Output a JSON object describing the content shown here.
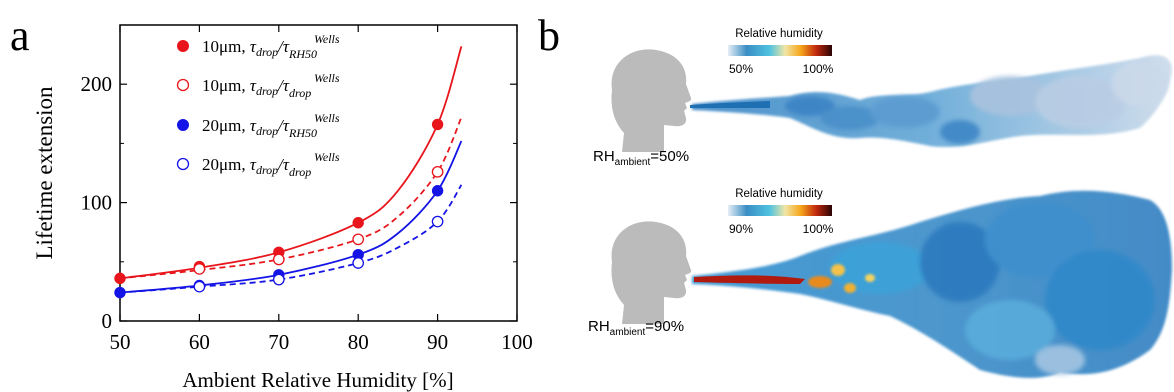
{
  "panel_a": {
    "label": "a",
    "chart_data": {
      "type": "scatter",
      "xlabel": "Ambient Relative Humidity [%]",
      "ylabel": "Lifetime extension",
      "xlim": [
        50,
        100
      ],
      "ylim": [
        0,
        250
      ],
      "xticks": [
        50,
        60,
        70,
        80,
        90,
        100
      ],
      "yticks": [
        0,
        100,
        200
      ],
      "grid": false,
      "legend_position": "top-left",
      "series": [
        {
          "name": "10μm, τdrop/τWellsRH50",
          "color": "#e8161c",
          "marker": "filled",
          "line": "solid",
          "x": [
            50,
            60,
            70,
            80,
            90
          ],
          "y": [
            36,
            46,
            58,
            83,
            166
          ]
        },
        {
          "name": "10μm, τdrop/τWellsdrop",
          "color": "#e8161c",
          "marker": "open",
          "line": "dashed",
          "x": [
            60,
            70,
            80,
            90
          ],
          "y": [
            44,
            52,
            69,
            126
          ]
        },
        {
          "name": "20μm, τdrop/τWellsRH50",
          "color": "#1414e6",
          "marker": "filled",
          "line": "solid",
          "x": [
            50,
            60,
            70,
            80,
            90
          ],
          "y": [
            24,
            30,
            39,
            56,
            110
          ]
        },
        {
          "name": "20μm, τdrop/τWellsdrop",
          "color": "#1414e6",
          "marker": "open",
          "line": "dashed",
          "x": [
            60,
            70,
            80,
            90
          ],
          "y": [
            29,
            35,
            49,
            84
          ]
        }
      ],
      "curves": [
        {
          "color": "#e8161c",
          "dash": false,
          "x": [
            50,
            60,
            70,
            80,
            85,
            90,
            93
          ],
          "y": [
            36,
            45,
            58,
            83,
            110,
            166,
            232
          ]
        },
        {
          "color": "#e8161c",
          "dash": true,
          "x": [
            50,
            60,
            70,
            80,
            85,
            90,
            93
          ],
          "y": [
            36,
            43,
            52,
            69,
            88,
            126,
            172
          ]
        },
        {
          "color": "#1414e6",
          "dash": false,
          "x": [
            50,
            60,
            70,
            80,
            85,
            90,
            93
          ],
          "y": [
            24,
            30,
            39,
            56,
            74,
            110,
            152
          ]
        },
        {
          "color": "#1414e6",
          "dash": true,
          "x": [
            50,
            60,
            70,
            80,
            85,
            90,
            93
          ],
          "y": [
            24,
            29,
            35,
            49,
            62,
            84,
            115
          ]
        }
      ]
    },
    "legend": [
      {
        "size": "10μm, ",
        "sup": "Wells",
        "sub": "RH50"
      },
      {
        "size": "10μm, ",
        "sup": "Wells",
        "sub": "drop"
      },
      {
        "size": "20μm, ",
        "sup": "Wells",
        "sub": "RH50"
      },
      {
        "size": "20μm, ",
        "sup": "Wells",
        "sub": "drop"
      }
    ]
  },
  "panel_b": {
    "label": "b",
    "top": {
      "colorbar_title": "Relative humidity",
      "colorbar_min": "50%",
      "colorbar_max": "100%",
      "caption_main": "RH",
      "caption_sub": "ambient",
      "caption_value": "=50%"
    },
    "bottom": {
      "colorbar_title": "Relative humidity",
      "colorbar_min": "90%",
      "colorbar_max": "100%",
      "caption_main": "RH",
      "caption_sub": "ambient",
      "caption_value": "=90%"
    }
  }
}
